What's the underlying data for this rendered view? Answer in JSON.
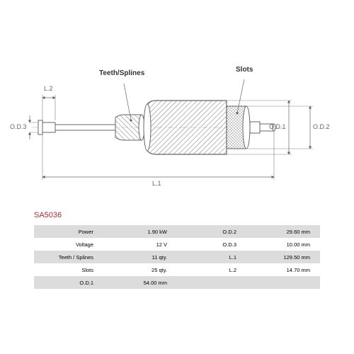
{
  "part_code": "SA5036",
  "part_code_color": "#b02a2a",
  "callouts": {
    "teeth": "Teeth/Splines",
    "slots": "Slots"
  },
  "dim_labels": {
    "L1": "L.1",
    "L2": "L.2",
    "OD1": "O.D.1",
    "OD2": "O.D.2",
    "OD3": "O.D.3"
  },
  "specs": {
    "left": [
      {
        "label": "Power",
        "value": "1.90 kW"
      },
      {
        "label": "Voltage",
        "value": "12 V"
      },
      {
        "label": "Teeth / Splines",
        "value": "11 qty."
      },
      {
        "label": "Slots",
        "value": "25 qty."
      },
      {
        "label": "O.D.1",
        "value": "54.00 mm"
      }
    ],
    "right": [
      {
        "label": "O.D.2",
        "value": "29.60 mm"
      },
      {
        "label": "O.D.3",
        "value": "10.00 mm"
      },
      {
        "label": "L.1",
        "value": "129.50 mm"
      },
      {
        "label": "L.2",
        "value": "14.70 mm"
      }
    ]
  },
  "colors": {
    "row_even": "#dcdcdc",
    "row_odd": "#ffffff",
    "diagram_stroke": "#666666",
    "hatch": "#888888"
  }
}
